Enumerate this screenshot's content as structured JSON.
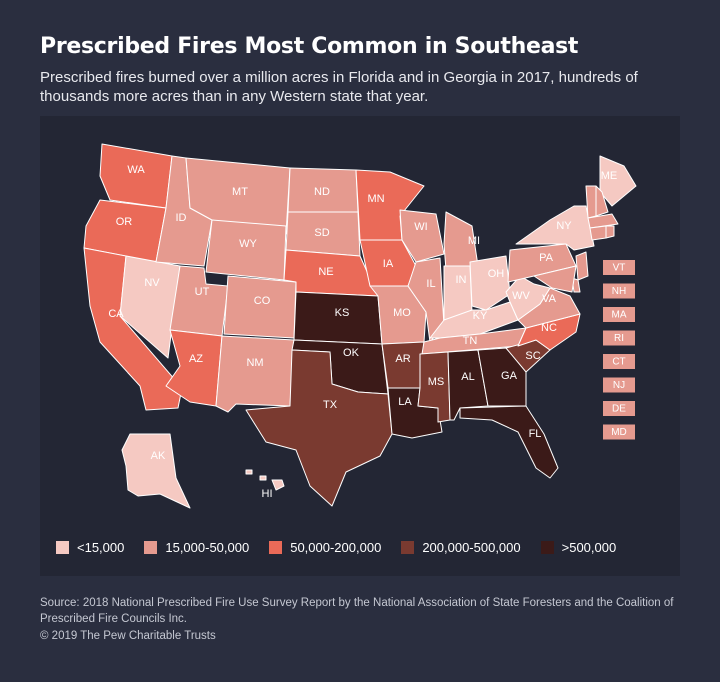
{
  "header": {
    "title": "Prescribed Fires Most Common in Southeast",
    "subtitle": "Prescribed fires burned over a million acres in Florida and in Georgia in 2017, hundreds of thousands more acres than in any Western state that year."
  },
  "colors": {
    "lt15000": "#f5c9c2",
    "c15000_50000": "#e59a8f",
    "c50000_200000": "#ea6a58",
    "c200000_500000": "#7a3a30",
    "gt500000": "#3b1a18",
    "background": "#2a2e3f",
    "panel": "#232634"
  },
  "legend": [
    {
      "label": "<15,000",
      "color": "#f5c9c2"
    },
    {
      "label": "15,000-50,000",
      "color": "#e59a8f"
    },
    {
      "label": "50,000-200,000",
      "color": "#ea6a58"
    },
    {
      "label": "200,000-500,000",
      "color": "#7a3a30"
    },
    {
      "label": ">500,000",
      "color": "#3b1a18"
    }
  ],
  "states": {
    "WA": "50,000-200,000",
    "OR": "50,000-200,000",
    "CA": "50,000-200,000",
    "NV": "<15,000",
    "ID": "15,000-50,000",
    "MT": "15,000-50,000",
    "WY": "15,000-50,000",
    "UT": "15,000-50,000",
    "CO": "15,000-50,000",
    "AZ": "50,000-200,000",
    "NM": "15,000-50,000",
    "ND": "15,000-50,000",
    "SD": "15,000-50,000",
    "NE": "50,000-200,000",
    "KS": ">500,000",
    "OK": ">500,000",
    "TX": "200,000-500,000",
    "MN": "50,000-200,000",
    "IA": "50,000-200,000",
    "MO": "15,000-50,000",
    "AR": "200,000-500,000",
    "LA": ">500,000",
    "WI": "15,000-50,000",
    "IL": "15,000-50,000",
    "MI": "15,000-50,000",
    "IN": "<15,000",
    "OH": "<15,000",
    "KY": "<15,000",
    "TN": "15,000-50,000",
    "MS": "200,000-500,000",
    "AL": ">500,000",
    "GA": ">500,000",
    "FL": ">500,000",
    "SC": "200,000-500,000",
    "NC": "50,000-200,000",
    "VA": "15,000-50,000",
    "WV": "<15,000",
    "PA": "15,000-50,000",
    "NY": "<15,000",
    "ME": "<15,000",
    "AK": "<15,000",
    "HI": "<15,000",
    "VT": "15,000-50,000",
    "NH": "15,000-50,000",
    "MA": "15,000-50,000",
    "RI": "15,000-50,000",
    "CT": "15,000-50,000",
    "NJ": "15,000-50,000",
    "DE": "15,000-50,000",
    "MD": "15,000-50,000"
  },
  "labels": {
    "WA": "WA",
    "OR": "OR",
    "CA": "CA",
    "NV": "NV",
    "ID": "ID",
    "MT": "MT",
    "WY": "WY",
    "UT": "UT",
    "CO": "CO",
    "AZ": "AZ",
    "NM": "NM",
    "ND": "ND",
    "SD": "SD",
    "NE": "NE",
    "KS": "KS",
    "OK": "OK",
    "TX": "TX",
    "MN": "MN",
    "IA": "IA",
    "MO": "MO",
    "AR": "AR",
    "LA": "LA",
    "WI": "WI",
    "IL": "IL",
    "MI": "MI",
    "IN": "IN",
    "OH": "OH",
    "KY": "KY",
    "TN": "TN",
    "MS": "MS",
    "AL": "AL",
    "GA": "GA",
    "FL": "FL",
    "SC": "SC",
    "NC": "NC",
    "VA": "VA",
    "WV": "WV",
    "PA": "PA",
    "NY": "NY",
    "ME": "ME",
    "AK": "AK",
    "HI": "HI"
  },
  "northeast_boxes": [
    "VT",
    "NH",
    "MA",
    "RI",
    "CT",
    "NJ",
    "DE",
    "MD"
  ],
  "footer": {
    "source": "Source: 2018 National Prescribed Fire Use Survey Report by the National Association of State Foresters and the Coalition of Prescribed Fire Councils Inc.",
    "copyright": "© 2019 The Pew Charitable Trusts"
  }
}
